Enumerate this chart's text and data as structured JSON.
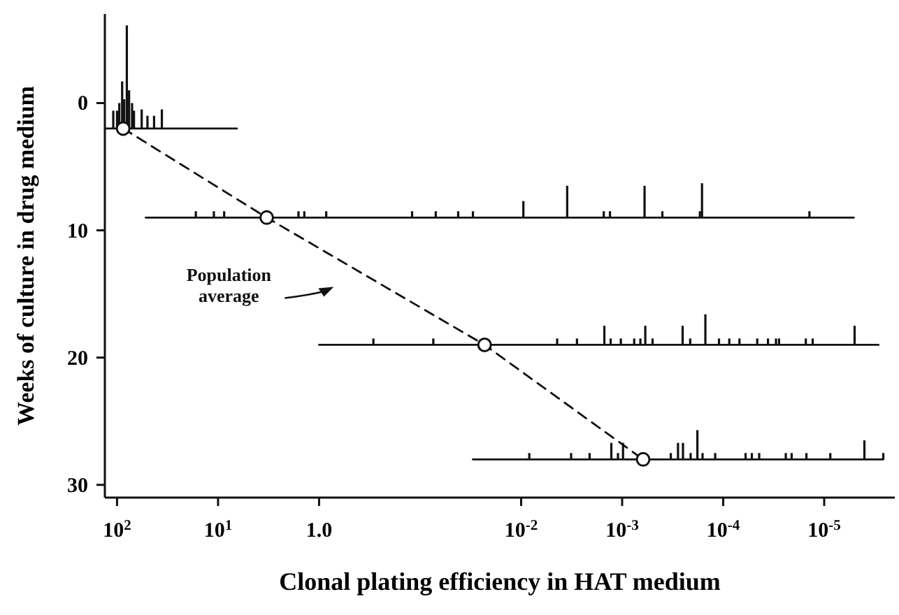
{
  "chart_data": {
    "type": "bar",
    "xlabel": "Clonal plating efficiency in HAT medium",
    "ylabel": "Weeks of culture in drug medium",
    "log": "x",
    "xlim": [
      132,
      2e-06
    ],
    "ylim": [
      31,
      -7
    ],
    "xticks": [
      {
        "value": 100,
        "label": "10$^{2}$"
      },
      {
        "value": 10,
        "label": "10$^{1}$"
      },
      {
        "value": 1,
        "label": "1.0"
      },
      {
        "value": 0.01,
        "label": "10$^{-2}$"
      },
      {
        "value": 0.001,
        "label": "10$^{-3}$"
      },
      {
        "value": 0.0001,
        "label": "10$^{-4}$"
      },
      {
        "value": 1e-05,
        "label": "10$^{-5}$"
      }
    ],
    "yticks": [
      0,
      10,
      20,
      30
    ],
    "series": [
      {
        "type": "line",
        "color": "#111111",
        "line_style": "solid",
        "marker": "none",
        "x": [
          132,
          6.5
        ],
        "values": [
          2,
          2
        ]
      },
      {
        "type": "line",
        "color": "#111111",
        "line_style": "solid",
        "marker": "none",
        "x": [
          52,
          5.1e-06
        ],
        "values": [
          9,
          9
        ]
      },
      {
        "type": "line",
        "color": "#111111",
        "line_style": "solid",
        "marker": "none",
        "x": [
          1.0,
          2.9e-06
        ],
        "values": [
          19,
          19
        ]
      },
      {
        "type": "line",
        "color": "#111111",
        "line_style": "solid",
        "marker": "none",
        "x": [
          0.03,
          2.6e-06
        ],
        "values": [
          28,
          28
        ]
      },
      {
        "color": "#111111",
        "x": [
          109,
          100,
          95,
          89,
          85,
          80,
          76,
          71,
          68,
          57,
          50,
          43,
          36,
          16.6,
          11,
          8.7,
          1.6,
          1.4,
          0.85,
          0.29,
          0.12,
          0.074,
          0.07,
          0.042,
          0.03,
          0.0095,
          0.0083,
          0.0044,
          0.0035,
          0.0032,
          0.0028,
          0.0021,
          0.00152,
          0.0015,
          0.00132,
          0.0013,
          0.00128,
          0.0011,
          0.00103,
          0.00098,
          0.00076,
          0.00066,
          0.0006,
          0.00059,
          0.0005,
          0.0004,
          0.00033,
          0.00028,
          0.000252,
          0.00025,
          0.000212,
          0.00021,
          0.00018,
          0.00017,
          0.000162,
          0.00016,
          0.00015,
          0.00012,
          0.00011,
          8.7e-05,
          6.9e-05,
          6e-05,
          5.2e-05,
          4.6e-05,
          4.4e-05,
          3.6e-05,
          3e-05,
          2.8e-05,
          2.4e-05,
          2.1e-05,
          1.52e-05,
          1.5e-05,
          1.4e-05,
          1.3e-05,
          8.7e-06,
          5e-06,
          4e-06,
          2.6e-06
        ],
        "base": [
          2,
          2,
          2,
          2,
          2,
          2,
          2,
          2,
          2,
          2,
          2,
          2,
          2,
          9,
          9,
          9,
          9,
          9,
          9,
          19,
          9,
          19,
          9,
          9,
          9,
          9,
          28,
          19,
          9,
          28,
          19,
          28,
          9,
          19,
          9,
          19,
          28,
          28,
          19,
          28,
          19,
          19,
          9,
          19,
          19,
          9,
          28,
          28,
          19,
          28,
          19,
          28,
          28,
          9,
          9,
          28,
          19,
          28,
          19,
          19,
          19,
          28,
          28,
          19,
          28,
          19,
          19,
          19,
          28,
          28,
          19,
          28,
          9,
          19,
          28,
          19,
          28,
          28
        ],
        "values": [
          -1.4,
          -1.4,
          -2,
          -3.7,
          -2.3,
          -8.1,
          -3,
          -2,
          -1.4,
          -1.5,
          -1,
          -1,
          -1.5,
          -0.5,
          -0.5,
          -0.5,
          -0.5,
          -0.5,
          -0.5,
          -0.5,
          -0.5,
          -0.5,
          -0.5,
          -0.5,
          -0.5,
          -1.3,
          -0.5,
          -0.5,
          -2.5,
          -0.5,
          -0.5,
          -0.5,
          -0.5,
          -1.5,
          -0.5,
          -0.5,
          -1.3,
          -0.5,
          -0.5,
          -1.3,
          -0.5,
          -0.5,
          -2.5,
          -1.5,
          -0.5,
          -0.5,
          -0.5,
          -1.3,
          -1.5,
          -1.3,
          -0.5,
          -0.5,
          -2.3,
          -0.5,
          -2.7,
          -0.5,
          -2.4,
          -0.5,
          -0.5,
          -0.5,
          -0.5,
          -0.5,
          -0.5,
          -0.5,
          -0.5,
          -0.5,
          -0.5,
          -0.5,
          -0.5,
          -0.5,
          -0.5,
          -0.5,
          -0.5,
          -0.5,
          -0.5,
          -1.5,
          -1.5,
          -0.5
        ]
      },
      {
        "type": "line",
        "name": "Population\naverage",
        "color": "#111111",
        "line_style": "dashed",
        "marker": "circle",
        "x": [
          87,
          3.3,
          0.023,
          0.00062
        ],
        "values": [
          2,
          9,
          19,
          28
        ]
      }
    ]
  }
}
